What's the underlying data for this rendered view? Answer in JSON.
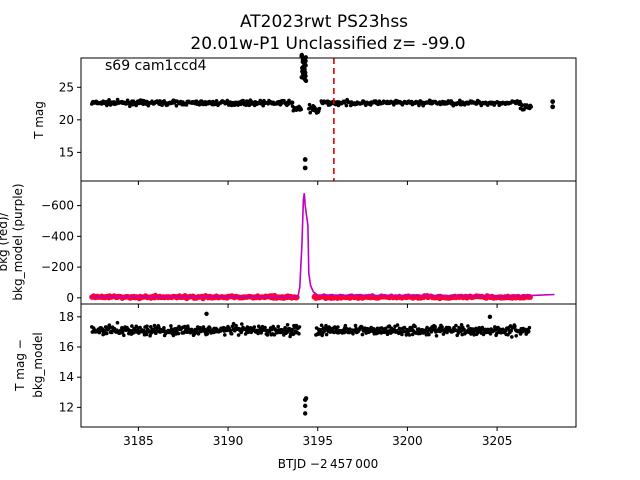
{
  "title_line1": "AT2023rwt  PS23hss",
  "title_line2": "20.01w-P1 Unclassified z= -99.0",
  "annotation": "s69 cam1ccd4",
  "xlabel": "BTJD −2 457 000",
  "colors": {
    "points": "#000000",
    "bkg": "#ff0033",
    "model": "#bf00bf",
    "marker": "#e00000"
  },
  "chart_data": [
    {
      "type": "scatter",
      "panel": "top",
      "ylabel": "T mag",
      "xlim": [
        3181.8,
        3209.4
      ],
      "ylim": [
        29.5,
        10.6
      ],
      "y_inverted": true,
      "yticks": [
        15,
        20,
        25
      ],
      "xticks": [
        3185,
        3190,
        3195,
        3200,
        3205
      ],
      "vline": {
        "x": 3195.9,
        "style": "dashed",
        "color": "red"
      },
      "series": [
        {
          "segments": [
            {
              "x": [
                3182.4,
                3193.6
              ],
              "y_center": 22.6,
              "spread": 0.6
            },
            {
              "x": [
                3193.6,
                3194.1
              ],
              "y_center": 21.8,
              "spread": 1.0
            },
            {
              "x": [
                3194.5,
                3195.1
              ],
              "y_center": 21.5,
              "spread": 1.3
            },
            {
              "x": [
                3195.2,
                3206.3
              ],
              "y_center": 22.6,
              "spread": 0.6
            },
            {
              "x": [
                3206.3,
                3206.9
              ],
              "y_center": 21.8,
              "spread": 1.0
            }
          ],
          "outliers": [
            [
              3194.3,
              12.6
            ],
            [
              3194.3,
              13.9
            ],
            [
              3194.25,
              27.5
            ],
            [
              3208.1,
              22.0
            ],
            [
              3208.1,
              22.8
            ]
          ],
          "dip": {
            "x": [
              3194.1,
              3194.35
            ],
            "y": [
              26.0,
              30.0
            ]
          }
        }
      ]
    },
    {
      "type": "line",
      "panel": "middle",
      "ylabel": "bkg (red)/ bkg_model (purple)",
      "ylim": [
        -760,
        40
      ],
      "yticks": [
        0,
        -200,
        -400,
        -600
      ],
      "series": [
        {
          "name": "bkg",
          "segments": [
            [
              3182.4,
              3193.9
            ],
            [
              3194.8,
              3206.9
            ]
          ],
          "y": -5,
          "spread": 14
        },
        {
          "name": "bkg_model",
          "points": [
            [
              3182.4,
              -8
            ],
            [
              3193.7,
              -8
            ],
            [
              3193.9,
              -12
            ],
            [
              3194.0,
              -70
            ],
            [
              3194.12,
              -360
            ],
            [
              3194.2,
              -640
            ],
            [
              3194.25,
              -680
            ],
            [
              3194.3,
              -600
            ],
            [
              3194.45,
              -470
            ],
            [
              3194.5,
              -160
            ],
            [
              3194.6,
              -80
            ],
            [
              3194.75,
              -40
            ],
            [
              3195.0,
              -18
            ],
            [
              3206.0,
              -10
            ],
            [
              3207.0,
              -16
            ],
            [
              3208.2,
              -22
            ]
          ]
        }
      ]
    },
    {
      "type": "scatter",
      "panel": "bottom",
      "ylabel": "T mag − bkg_model",
      "ylim": [
        18.85,
        10.7
      ],
      "y_inverted": true,
      "yticks": [
        12,
        14,
        16,
        18
      ],
      "series": [
        {
          "segments": [
            [
              3182.4,
              3194.0
            ],
            [
              3194.9,
              3206.8
            ]
          ],
          "y_center": 17.1,
          "spread": 0.55,
          "outliers": [
            [
              3194.3,
              11.6
            ],
            [
              3194.3,
              12.1
            ],
            [
              3194.3,
              12.5
            ],
            [
              3194.35,
              12.6
            ],
            [
              3188.8,
              18.2
            ],
            [
              3204.6,
              18.0
            ]
          ]
        }
      ]
    }
  ]
}
